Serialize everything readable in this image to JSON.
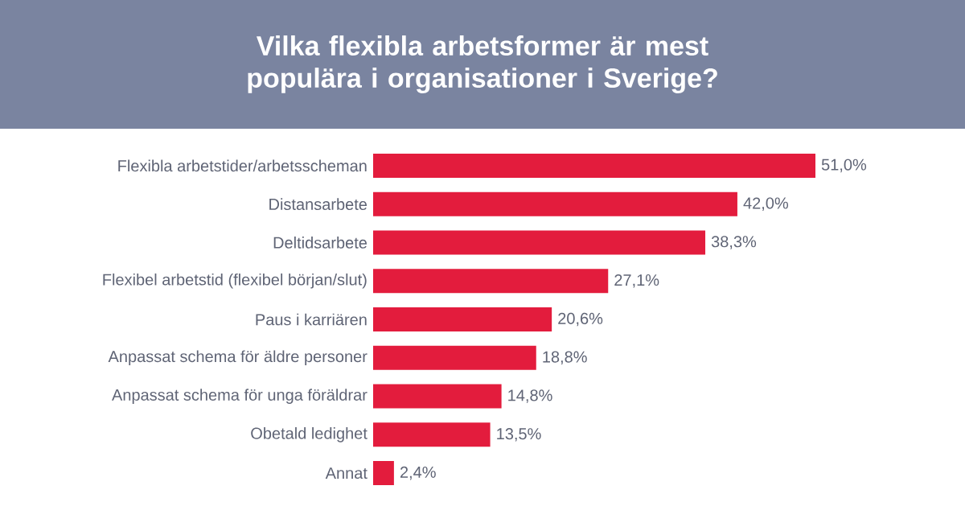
{
  "chart_data": {
    "type": "bar",
    "orientation": "horizontal",
    "title": "Vilka flexibla arbetsformer är mest populära i organisationer i Sverige?",
    "categories": [
      "Flexibla arbetstider/arbetsscheman",
      "Distansarbete",
      "Deltidsarbete",
      "Flexibel arbetstid (flexibel början/slut)",
      "Paus i karriären",
      "Anpassat schema för äldre personer",
      "Anpassat schema för unga föräldrar",
      "Obetald ledighet",
      "Annat"
    ],
    "values": [
      51.0,
      42.0,
      38.3,
      27.1,
      20.6,
      18.8,
      14.8,
      13.5,
      2.4
    ],
    "value_labels": [
      "51,0%",
      "42,0%",
      "38,3%",
      "27,1%",
      "20,6%",
      "18,8%",
      "14,8%",
      "13,5%",
      "2,4%"
    ],
    "color": "#e31c3d",
    "tick_labels": "y",
    "grid": false
  }
}
